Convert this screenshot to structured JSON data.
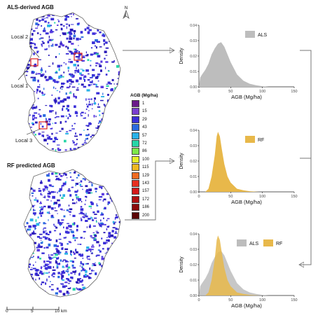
{
  "maps": {
    "top_title": "ALS-derived AGB",
    "bottom_title": "RF predicted AGB",
    "local_labels": [
      "Local 1",
      "Local 2",
      "Local 3"
    ],
    "north_label": "N"
  },
  "legend": {
    "title": "AGB (Mg/ha)",
    "items": [
      {
        "label": "1",
        "color": "#6a1a8a"
      },
      {
        "label": "15",
        "color": "#7a3fd0"
      },
      {
        "label": "29",
        "color": "#3a2fd8"
      },
      {
        "label": "43",
        "color": "#2a6be0"
      },
      {
        "label": "57",
        "color": "#2ab2e8"
      },
      {
        "label": "72",
        "color": "#28d6a8"
      },
      {
        "label": "86",
        "color": "#7ee84a"
      },
      {
        "label": "100",
        "color": "#e8f02a"
      },
      {
        "label": "115",
        "color": "#f0b820"
      },
      {
        "label": "129",
        "color": "#f06a20"
      },
      {
        "label": "143",
        "color": "#e83020"
      },
      {
        "label": "157",
        "color": "#d41818"
      },
      {
        "label": "172",
        "color": "#b01010"
      },
      {
        "label": "186",
        "color": "#8a0a0a"
      },
      {
        "label": "200",
        "color": "#5a0606"
      }
    ]
  },
  "scale_bar": {
    "labels": [
      "0",
      "5",
      "10 km"
    ]
  },
  "chart_data": [
    {
      "type": "area",
      "legend": [
        "ALS"
      ],
      "xlabel": "AGB (Mg/ha)",
      "ylabel": "Density",
      "xlim": [
        0,
        150
      ],
      "ylim": [
        0,
        0.04
      ],
      "x_ticks": [
        "0",
        "50",
        "100",
        "150"
      ],
      "y_ticks": [
        "0.00",
        "0.01",
        "0.02",
        "0.03",
        "0.04"
      ],
      "series": [
        {
          "name": "ALS",
          "color": "#bdbdbd",
          "x": [
            0,
            2,
            5,
            10,
            15,
            20,
            25,
            30,
            35,
            40,
            45,
            50,
            55,
            60,
            70,
            80,
            90,
            100,
            110
          ],
          "y": [
            0.0,
            0.006,
            0.008,
            0.011,
            0.015,
            0.021,
            0.025,
            0.028,
            0.029,
            0.026,
            0.021,
            0.016,
            0.012,
            0.008,
            0.004,
            0.002,
            0.001,
            0.0004,
            0.0
          ]
        }
      ]
    },
    {
      "type": "area",
      "legend": [
        "RF"
      ],
      "xlabel": "AGB (Mg/ha)",
      "ylabel": "Density",
      "xlim": [
        0,
        150
      ],
      "ylim": [
        0,
        0.04
      ],
      "x_ticks": [
        "0",
        "50",
        "100",
        "150"
      ],
      "y_ticks": [
        "0.00",
        "0.01",
        "0.02",
        "0.03",
        "0.04"
      ],
      "series": [
        {
          "name": "RF",
          "color": "#e8b84a",
          "x": [
            10,
            15,
            20,
            25,
            28,
            30,
            33,
            36,
            40,
            45,
            50,
            60,
            70,
            80,
            95
          ],
          "y": [
            0.0,
            0.002,
            0.01,
            0.024,
            0.036,
            0.039,
            0.036,
            0.028,
            0.018,
            0.01,
            0.006,
            0.002,
            0.001,
            0.0004,
            0.0
          ]
        }
      ]
    },
    {
      "type": "area",
      "legend": [
        "ALS",
        "RF"
      ],
      "xlabel": "AGB (Mg/ha)",
      "ylabel": "Density",
      "xlim": [
        0,
        150
      ],
      "ylim": [
        0,
        0.04
      ],
      "x_ticks": [
        "0",
        "50",
        "100",
        "150"
      ],
      "y_ticks": [
        "0.00",
        "0.01",
        "0.02",
        "0.03",
        "0.04"
      ],
      "series": [
        {
          "name": "ALS",
          "color": "#bdbdbd",
          "x": [
            0,
            2,
            5,
            10,
            15,
            20,
            25,
            30,
            35,
            40,
            45,
            50,
            55,
            60,
            70,
            80,
            90,
            100,
            110
          ],
          "y": [
            0.0,
            0.006,
            0.008,
            0.011,
            0.015,
            0.021,
            0.025,
            0.028,
            0.029,
            0.026,
            0.021,
            0.016,
            0.012,
            0.008,
            0.004,
            0.002,
            0.001,
            0.0004,
            0.0
          ]
        },
        {
          "name": "RF",
          "color": "#e8b84a",
          "x": [
            10,
            15,
            20,
            25,
            28,
            30,
            33,
            36,
            40,
            45,
            50,
            60,
            70,
            80,
            95
          ],
          "y": [
            0.0,
            0.002,
            0.01,
            0.024,
            0.036,
            0.039,
            0.036,
            0.028,
            0.018,
            0.01,
            0.006,
            0.002,
            0.001,
            0.0004,
            0.0
          ]
        }
      ]
    }
  ]
}
